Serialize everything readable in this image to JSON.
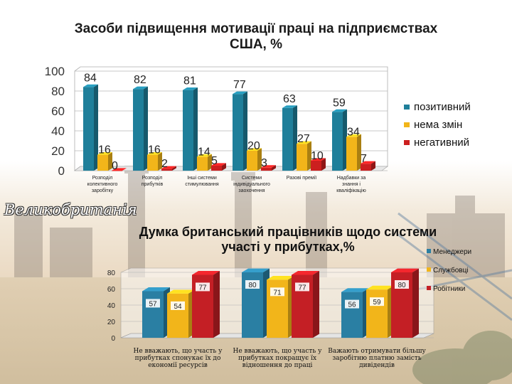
{
  "page": {
    "uk_label": "Великобританія"
  },
  "chart_data": [
    {
      "type": "bar",
      "title_lines": [
        "Засоби підвищення мотивації праці на підприємствах",
        "США, %"
      ],
      "categories": [
        [
          "Розподіл",
          "колективного",
          "заробітку"
        ],
        [
          "Розподіл",
          "прибутків"
        ],
        [
          "Інші системи",
          "стимулювання"
        ],
        [
          "Системи",
          "індивідуального",
          "заохочення"
        ],
        [
          "Разові премії"
        ],
        [
          "Надбавки за",
          "знання і",
          "кваліфікацію"
        ]
      ],
      "series": [
        {
          "name": "позитивний",
          "color": "#1f7f9a",
          "values": [
            84,
            82,
            81,
            77,
            63,
            59
          ]
        },
        {
          "name": "нема змін",
          "color": "#f2b51a",
          "values": [
            16,
            16,
            14,
            20,
            27,
            34
          ]
        },
        {
          "name": "негативний",
          "color": "#cc1f1f",
          "values": [
            0,
            2,
            5,
            3,
            10,
            7
          ]
        }
      ],
      "yticks": [
        0,
        20,
        40,
        60,
        80,
        100
      ],
      "ylim": [
        0,
        100
      ],
      "grid": true,
      "legend": "right"
    },
    {
      "type": "bar",
      "title_lines": [
        "Думка британський працівників щодо системи",
        "участі у прибутках,%"
      ],
      "categories": [
        [
          "Не вважають, що участь у",
          "прибутках спонукає їх до",
          "економії ресурсів"
        ],
        [
          "Не вважають, що участь у",
          "прибутках покращує їх",
          "відношення до праці"
        ],
        [
          "Важають отримувати більшу",
          "заробітню платню замість",
          "дивідендів"
        ]
      ],
      "series": [
        {
          "name": "Менеджери",
          "color": "#2a7fa3",
          "values": [
            57,
            80,
            56
          ]
        },
        {
          "name": "Службовці",
          "color": "#f2b51a",
          "values": [
            54,
            71,
            59
          ]
        },
        {
          "name": "Робітники",
          "color": "#c41f25",
          "values": [
            77,
            77,
            80
          ]
        }
      ],
      "yticks": [
        0,
        20,
        40,
        60,
        80
      ],
      "ylim": [
        0,
        80
      ],
      "grid": true,
      "legend": "right"
    }
  ]
}
